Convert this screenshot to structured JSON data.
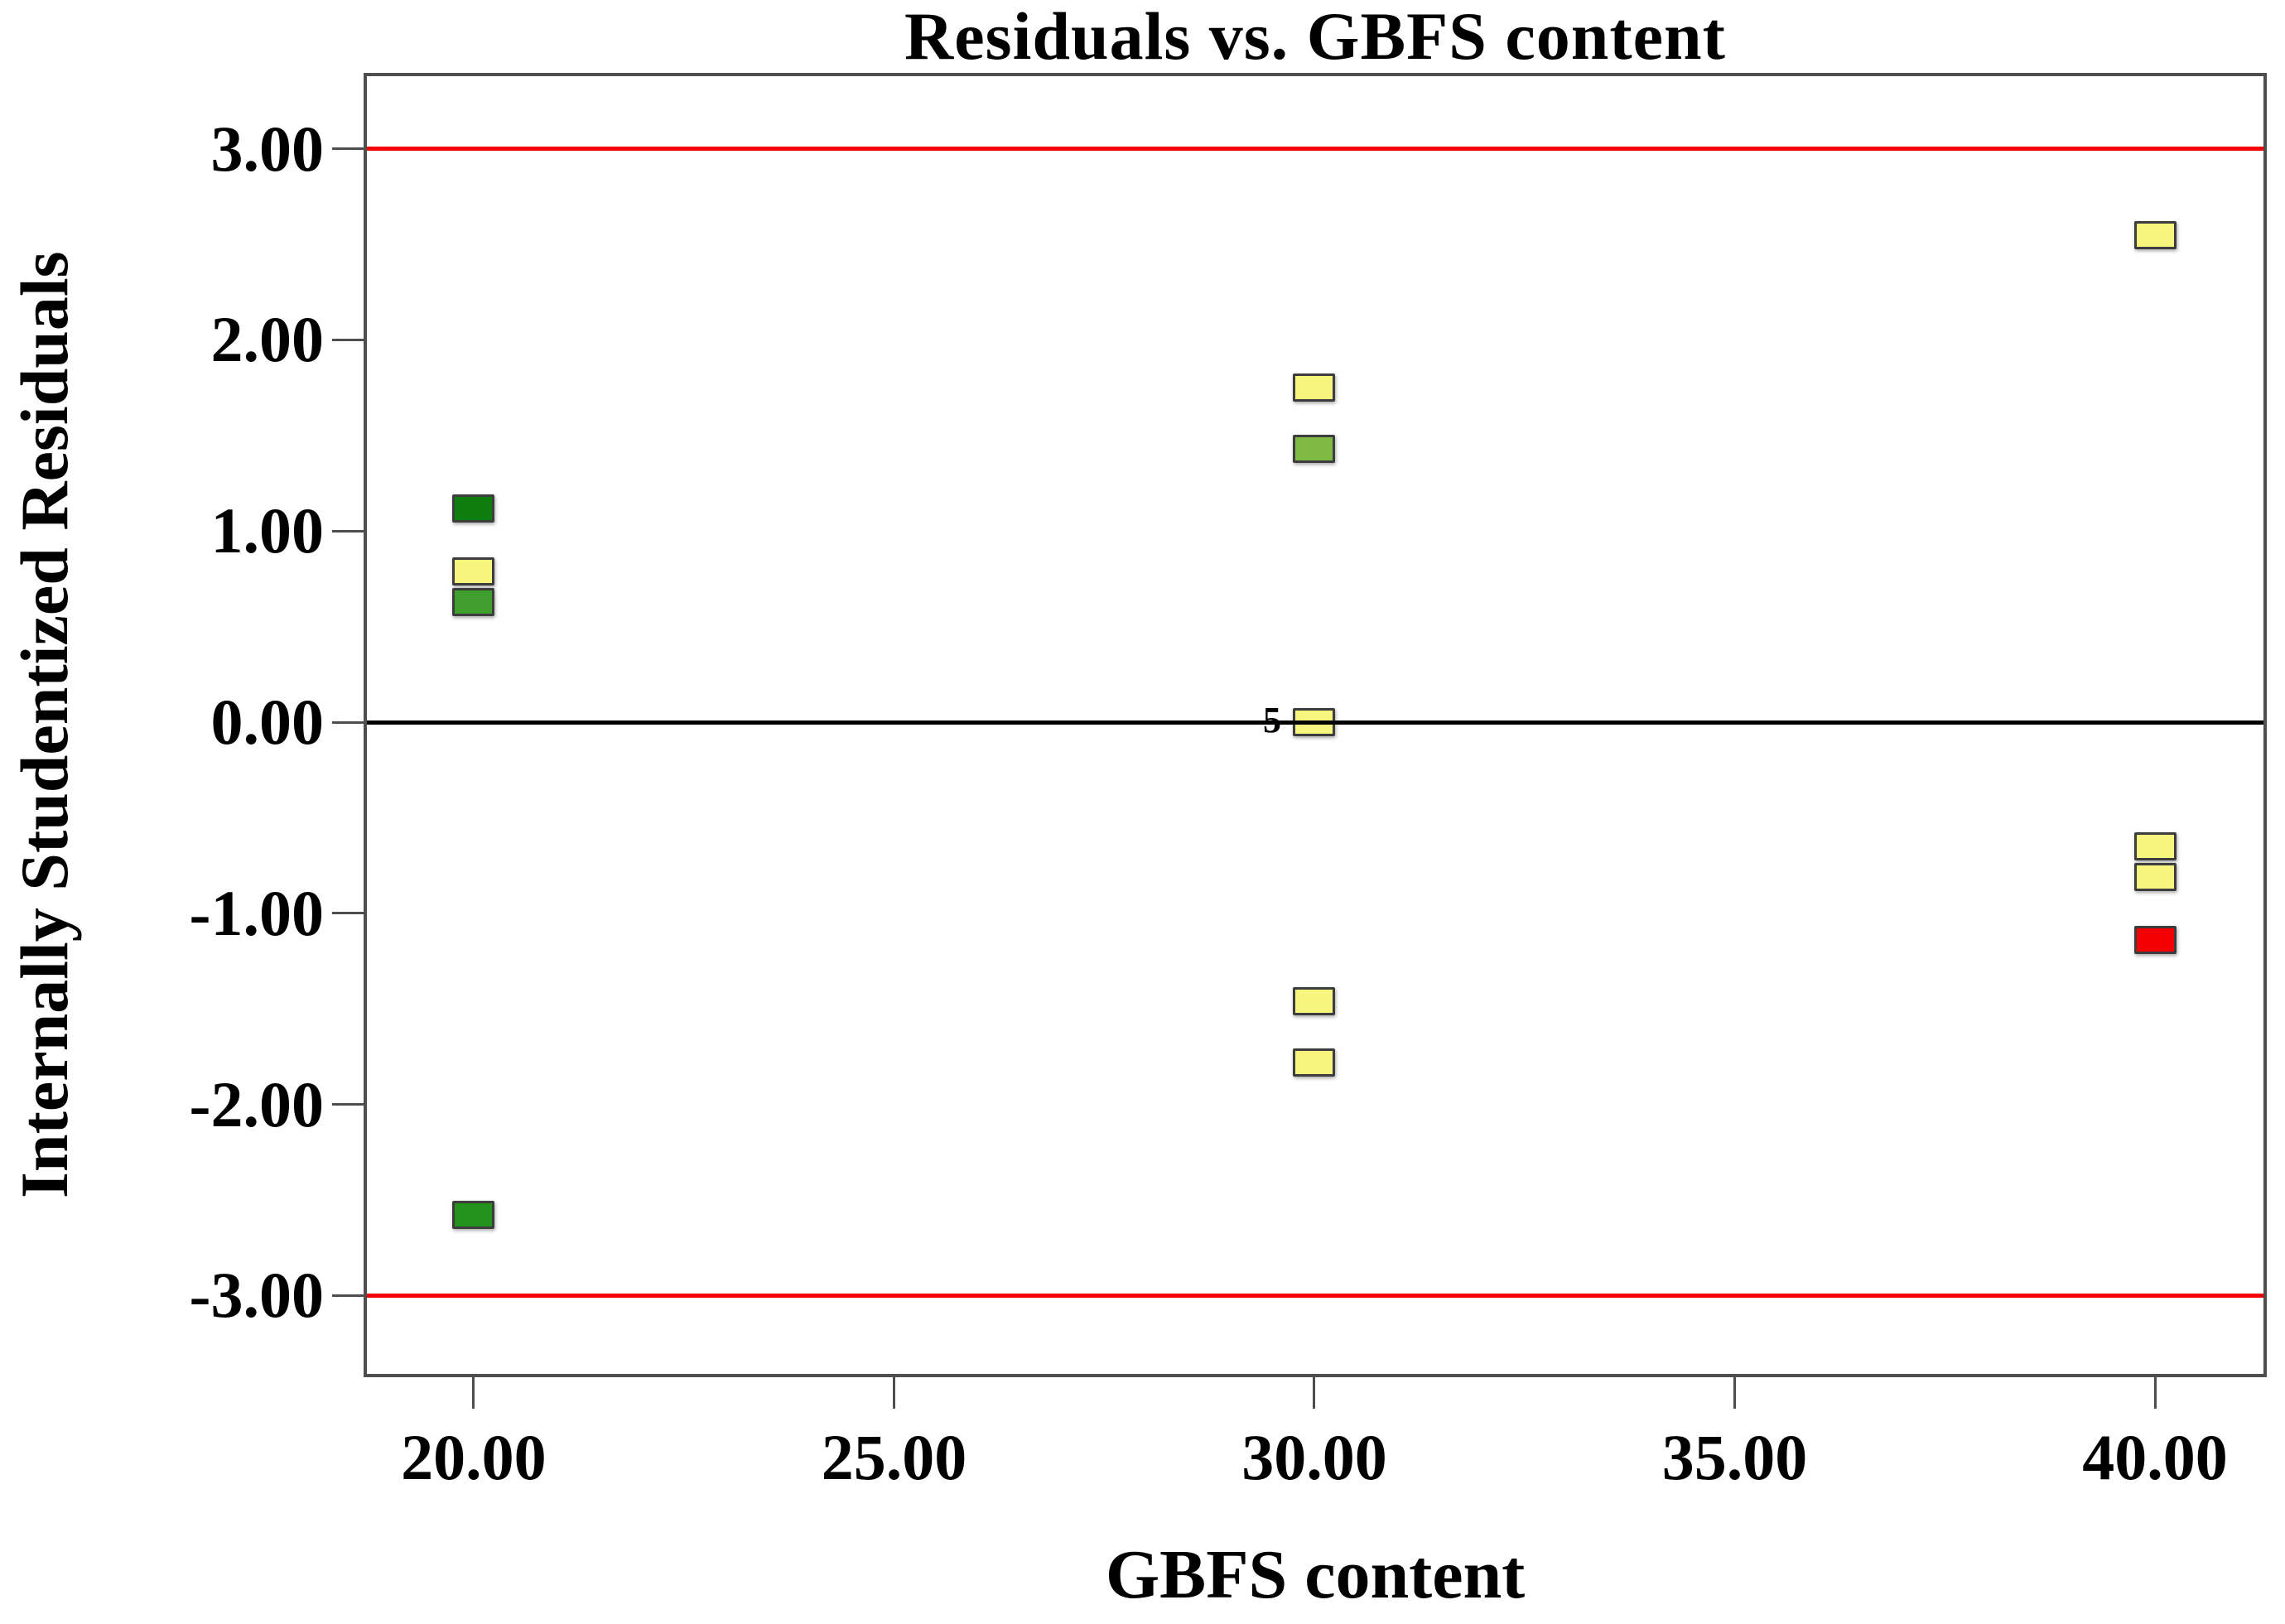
{
  "chart_data": {
    "type": "scatter",
    "title": "Residuals vs. GBFS content",
    "xlabel": "GBFS content",
    "ylabel": "Internally Studentized Residuals",
    "xlim": [
      18.73,
      41.29
    ],
    "ylim": [
      -3.41,
      3.38
    ],
    "grid": false,
    "legend": null,
    "marker": {
      "shape": "square",
      "border_color": "#3d3d3d"
    },
    "x_ticks": [
      {
        "value": 20,
        "label": "20.00"
      },
      {
        "value": 25,
        "label": "25.00"
      },
      {
        "value": 30,
        "label": "30.00"
      },
      {
        "value": 35,
        "label": "35.00"
      },
      {
        "value": 40,
        "label": "40.00"
      }
    ],
    "y_ticks": [
      {
        "value": 3,
        "label": "3.00"
      },
      {
        "value": 2,
        "label": "2.00"
      },
      {
        "value": 1,
        "label": "1.00"
      },
      {
        "value": 0,
        "label": "0.00"
      },
      {
        "value": -1,
        "label": "-1.00"
      },
      {
        "value": -2,
        "label": "-2.00"
      },
      {
        "value": -3,
        "label": "-3.00"
      }
    ],
    "reference_lines": [
      {
        "y": 3,
        "color": "#f40000",
        "name": "upper-limit-line"
      },
      {
        "y": 0,
        "color": "#000000",
        "name": "zero-line"
      },
      {
        "y": -3,
        "color": "#f40000",
        "name": "lower-limit-line"
      }
    ],
    "points": [
      {
        "x": 20,
        "y": 1.12,
        "color": "#0d7d0d"
      },
      {
        "x": 20,
        "y": 0.79,
        "color": "#f6f67e"
      },
      {
        "x": 20,
        "y": 0.63,
        "color": "#3f9e2c"
      },
      {
        "x": 20,
        "y": -2.58,
        "color": "#23921b"
      },
      {
        "x": 30,
        "y": 1.75,
        "color": "#f6f67e"
      },
      {
        "x": 30,
        "y": 1.43,
        "color": "#7fba45"
      },
      {
        "x": 30,
        "y": 0.0,
        "color": "#f6f67e",
        "count_label": "5"
      },
      {
        "x": 30,
        "y": -1.46,
        "color": "#f6f67e"
      },
      {
        "x": 30,
        "y": -1.78,
        "color": "#f6f67e"
      },
      {
        "x": 40,
        "y": 2.55,
        "color": "#f6f67e"
      },
      {
        "x": 40,
        "y": -0.65,
        "color": "#f6f67e"
      },
      {
        "x": 40,
        "y": -0.81,
        "color": "#f6f67e"
      },
      {
        "x": 40,
        "y": -1.14,
        "color": "#f50000"
      }
    ]
  }
}
